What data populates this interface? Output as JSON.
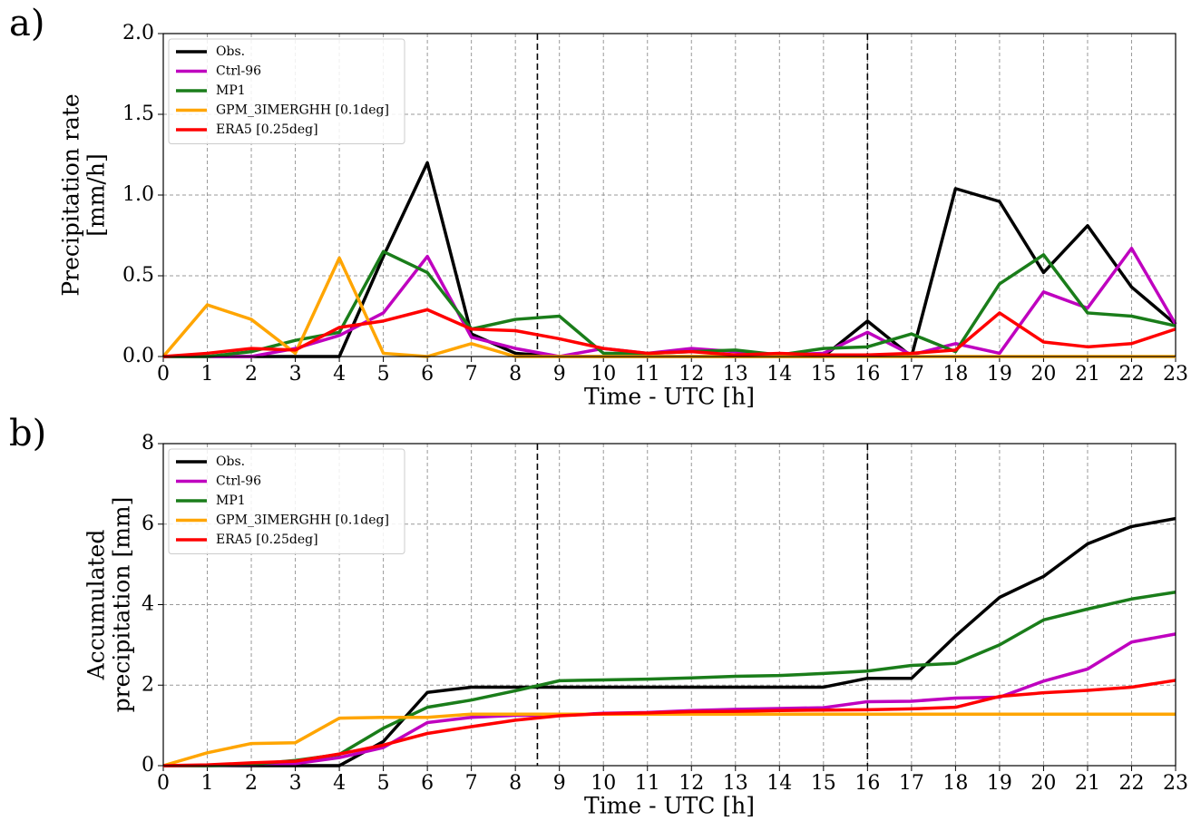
{
  "chart_data": [
    {
      "type": "line",
      "panel_label": "a)",
      "xlabel": "Time - UTC [h]",
      "ylabel": [
        "Precipitation rate",
        "[mm/h]"
      ],
      "x": [
        0,
        1,
        2,
        3,
        4,
        5,
        6,
        7,
        8,
        9,
        10,
        11,
        12,
        13,
        14,
        15,
        16,
        17,
        18,
        19,
        20,
        21,
        22,
        23
      ],
      "xlim": [
        0,
        23
      ],
      "xticks": [
        0,
        1,
        2,
        3,
        4,
        5,
        6,
        7,
        8,
        9,
        10,
        11,
        12,
        13,
        14,
        15,
        16,
        17,
        18,
        19,
        20,
        21,
        22,
        23
      ],
      "ylim": [
        0,
        2
      ],
      "yticks": [
        {
          "value": 0,
          "label": "0.0"
        },
        0.5,
        {
          "value": 1,
          "label": "1.0"
        },
        1.5,
        {
          "value": 2,
          "label": "2.0"
        }
      ],
      "grid": true,
      "legend": "upper left",
      "vlines": [
        8.5,
        16
      ],
      "series": [
        {
          "name": "Obs.",
          "color": "#000000",
          "values": [
            0,
            0,
            0,
            0,
            0,
            0.62,
            1.2,
            0.14,
            0.02,
            0,
            0,
            0,
            0,
            0,
            0,
            0,
            0.22,
            0,
            1.04,
            0.96,
            0.52,
            0.81,
            0.43,
            0.2
          ]
        },
        {
          "name": "Ctrl-96",
          "color": "#bf00bf",
          "values": [
            0,
            0,
            0,
            0.05,
            0.13,
            0.27,
            0.62,
            0.12,
            0.05,
            0,
            0.05,
            0.02,
            0.05,
            0.03,
            0.01,
            0.02,
            0.15,
            0.01,
            0.08,
            0.02,
            0.4,
            0.3,
            0.67,
            0.2
          ]
        },
        {
          "name": "MP1",
          "color": "#1a7d1a",
          "values": [
            0,
            0,
            0.03,
            0.1,
            0.15,
            0.65,
            0.52,
            0.17,
            0.23,
            0.25,
            0.02,
            0.02,
            0.03,
            0.04,
            0.01,
            0.05,
            0.06,
            0.14,
            0.03,
            0.45,
            0.63,
            0.27,
            0.25,
            0.19
          ]
        },
        {
          "name": "GPM_3IMERGHH [0.1deg]",
          "color": "#ffa500",
          "values": [
            0,
            0.32,
            0.23,
            0.02,
            0.61,
            0.02,
            0,
            0.08,
            0,
            0,
            0,
            0,
            0,
            0,
            0,
            0,
            0,
            0,
            0,
            0,
            0,
            0,
            0,
            0
          ]
        },
        {
          "name": "ERA5 [0.25deg]",
          "color": "#ff0000",
          "values": [
            0,
            0.02,
            0.05,
            0.04,
            0.18,
            0.22,
            0.29,
            0.17,
            0.16,
            0.11,
            0.05,
            0.02,
            0.03,
            0.01,
            0.02,
            0.01,
            0.01,
            0.02,
            0.04,
            0.27,
            0.09,
            0.06,
            0.08,
            0.17
          ]
        }
      ]
    },
    {
      "type": "line",
      "panel_label": "b)",
      "xlabel": "Time - UTC [h]",
      "ylabel": [
        "Accumulated",
        "precipitation [mm]"
      ],
      "x": [
        0,
        1,
        2,
        3,
        4,
        5,
        6,
        7,
        8,
        9,
        10,
        11,
        12,
        13,
        14,
        15,
        16,
        17,
        18,
        19,
        20,
        21,
        22,
        23
      ],
      "xlim": [
        0,
        23
      ],
      "xticks": [
        0,
        1,
        2,
        3,
        4,
        5,
        6,
        7,
        8,
        9,
        10,
        11,
        12,
        13,
        14,
        15,
        16,
        17,
        18,
        19,
        20,
        21,
        22,
        23
      ],
      "ylim": [
        0,
        8
      ],
      "yticks": [
        0,
        2,
        4,
        6,
        8
      ],
      "grid": true,
      "legend": "upper left",
      "vlines": [
        8.5,
        16
      ],
      "series": [
        {
          "name": "Obs.",
          "color": "#000000",
          "values": [
            0,
            0,
            0,
            0,
            0,
            0.6,
            1.82,
            1.95,
            1.95,
            1.95,
            1.95,
            1.95,
            1.95,
            1.95,
            1.95,
            1.95,
            2.17,
            2.17,
            3.22,
            4.18,
            4.7,
            5.51,
            5.94,
            6.14
          ]
        },
        {
          "name": "Ctrl-96",
          "color": "#bf00bf",
          "values": [
            0,
            0,
            0.02,
            0.05,
            0.2,
            0.45,
            1.07,
            1.2,
            1.25,
            1.25,
            1.3,
            1.32,
            1.37,
            1.4,
            1.42,
            1.44,
            1.59,
            1.6,
            1.68,
            1.7,
            2.1,
            2.4,
            3.07,
            3.27
          ]
        },
        {
          "name": "MP1",
          "color": "#1a7d1a",
          "values": [
            0,
            0,
            0.03,
            0.13,
            0.28,
            0.93,
            1.45,
            1.63,
            1.86,
            2.11,
            2.13,
            2.15,
            2.18,
            2.22,
            2.24,
            2.29,
            2.35,
            2.49,
            2.54,
            3.0,
            3.62,
            3.89,
            4.14,
            4.31
          ]
        },
        {
          "name": "GPM_3IMERGHH [0.1deg]",
          "color": "#ffa500",
          "values": [
            0,
            0.32,
            0.55,
            0.57,
            1.18,
            1.2,
            1.2,
            1.28,
            1.28,
            1.28,
            1.28,
            1.28,
            1.28,
            1.28,
            1.28,
            1.28,
            1.28,
            1.28,
            1.28,
            1.28,
            1.28,
            1.28,
            1.28,
            1.28
          ]
        },
        {
          "name": "ERA5 [0.25deg]",
          "color": "#ff0000",
          "values": [
            0,
            0.02,
            0.07,
            0.11,
            0.29,
            0.51,
            0.8,
            0.97,
            1.13,
            1.24,
            1.29,
            1.31,
            1.34,
            1.35,
            1.37,
            1.38,
            1.39,
            1.41,
            1.45,
            1.72,
            1.81,
            1.87,
            1.95,
            2.12
          ]
        }
      ]
    }
  ]
}
